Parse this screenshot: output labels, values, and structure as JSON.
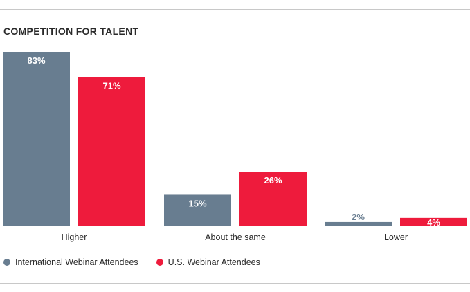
{
  "chart_data": {
    "type": "bar",
    "title": "COMPETITION FOR TALENT",
    "categories": [
      "Higher",
      "About the same",
      "Lower"
    ],
    "series": [
      {
        "name": "International Webinar Attendees",
        "values": [
          83,
          15,
          2
        ],
        "labels": [
          "83%",
          "15%",
          "2%"
        ],
        "color": "#687d90"
      },
      {
        "name": "U.S. Webinar Attendees",
        "values": [
          71,
          26,
          4
        ],
        "labels": [
          "71%",
          "26%",
          "4%"
        ],
        "color": "#ee1b3c"
      }
    ],
    "xlabel": "",
    "ylabel": "",
    "ylim": [
      0,
      83
    ],
    "grid": false,
    "legend_position": "bottom-left"
  }
}
